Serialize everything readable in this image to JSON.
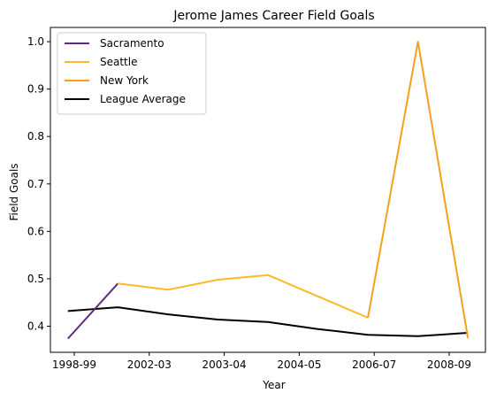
{
  "chart_data": {
    "type": "line",
    "title": "Jerome James Career Field Goals",
    "xlabel": "Year",
    "ylabel": "Field Goals",
    "x_ticks": [
      "1998-99",
      "2002-03",
      "2003-04",
      "2004-05",
      "2006-07",
      "2008-09"
    ],
    "y_ticks": [
      0.4,
      0.5,
      0.6,
      0.7,
      0.8,
      0.9,
      1.0
    ],
    "ylim": [
      0.345,
      1.03
    ],
    "grid": false,
    "legend_position": "top-left",
    "series": [
      {
        "name": "Sacramento",
        "color": "#5a2d81",
        "x": [
          0,
          1
        ],
        "y": [
          0.374,
          0.49
        ]
      },
      {
        "name": "Seattle",
        "color": "#fdb927",
        "x": [
          1,
          2,
          3,
          4,
          6
        ],
        "y": [
          0.49,
          0.477,
          0.498,
          0.508,
          0.418
        ]
      },
      {
        "name": "New York",
        "color": "#f5a01f",
        "x": [
          6,
          7,
          8
        ],
        "y": [
          0.418,
          1.0,
          0.375
        ]
      },
      {
        "name": "League Average",
        "color": "#000000",
        "x": [
          0,
          1,
          2,
          3,
          4,
          5,
          6,
          7,
          8
        ],
        "y": [
          0.432,
          0.44,
          0.425,
          0.414,
          0.409,
          0.394,
          0.382,
          0.379,
          0.386
        ]
      }
    ]
  }
}
